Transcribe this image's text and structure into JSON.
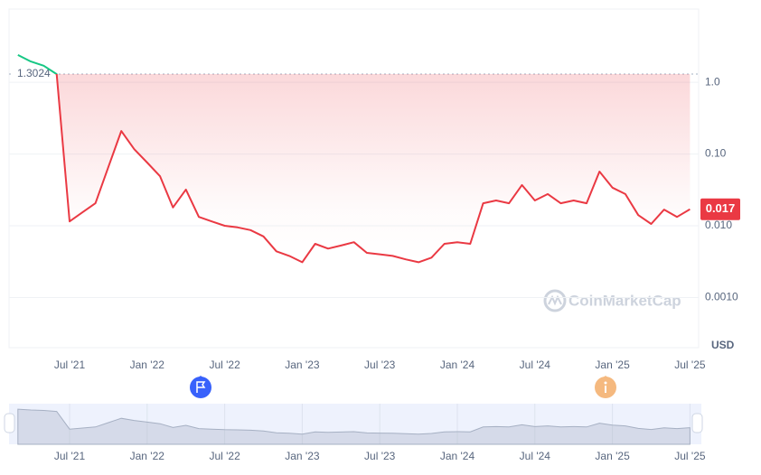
{
  "chart_data": {
    "type": "line",
    "x": [
      "2021-03",
      "2021-04",
      "2021-05",
      "2021-06",
      "2021-07",
      "2021-08",
      "2021-09",
      "2021-10",
      "2021-11",
      "2021-12",
      "2022-01",
      "2022-02",
      "2022-03",
      "2022-04",
      "2022-05",
      "2022-06",
      "2022-07",
      "2022-08",
      "2022-09",
      "2022-10",
      "2022-11",
      "2022-12",
      "2023-01",
      "2023-02",
      "2023-03",
      "2023-04",
      "2023-05",
      "2023-06",
      "2023-07",
      "2023-08",
      "2023-09",
      "2023-10",
      "2023-11",
      "2023-12",
      "2024-01",
      "2024-02",
      "2024-03",
      "2024-04",
      "2024-05",
      "2024-06",
      "2024-07",
      "2024-08",
      "2024-09",
      "2024-10",
      "2024-11",
      "2024-12",
      "2025-01",
      "2025-02",
      "2025-03",
      "2025-04",
      "2025-05",
      "2025-06",
      "2025-07"
    ],
    "series": [
      {
        "color": "#ea3943",
        "color_above": "#16c784",
        "values": [
          2.4,
          1.95,
          1.7,
          1.3,
          0.0115,
          0.0154,
          0.0206,
          0.066,
          0.209,
          0.117,
          0.076,
          0.049,
          0.018,
          0.032,
          0.0133,
          0.0115,
          0.01,
          0.0095,
          0.0087,
          0.0071,
          0.0044,
          0.0038,
          0.0031,
          0.0056,
          0.0048,
          0.0053,
          0.0059,
          0.0042,
          0.004,
          0.0038,
          0.0034,
          0.0031,
          0.0036,
          0.0056,
          0.0059,
          0.0056,
          0.0206,
          0.0225,
          0.0206,
          0.037,
          0.0225,
          0.0277,
          0.0206,
          0.0225,
          0.0206,
          0.057,
          0.034,
          0.0277,
          0.0141,
          0.0106,
          0.0168,
          0.0133,
          0.017
        ]
      }
    ],
    "reference_line": 1.3024,
    "log_scale": true,
    "grid": true,
    "ylim": [
      0.0002,
      10.5
    ],
    "yticks": [
      {
        "value": 1,
        "label": "1.0"
      },
      {
        "value": 0.1,
        "label": "0.10"
      },
      {
        "value": 0.01,
        "label": "0.010"
      },
      {
        "value": 0.001,
        "label": "0.0010"
      }
    ],
    "y_unit": "USD",
    "xticks": [
      {
        "value": "2021-07",
        "label": "Jul '21"
      },
      {
        "value": "2022-01",
        "label": "Jan '22"
      },
      {
        "value": "2022-07",
        "label": "Jul '22"
      },
      {
        "value": "2023-01",
        "label": "Jan '23"
      },
      {
        "value": "2023-07",
        "label": "Jul '23"
      },
      {
        "value": "2024-01",
        "label": "Jan '24"
      },
      {
        "value": "2024-07",
        "label": "Jul '24"
      },
      {
        "value": "2025-01",
        "label": "Jan '25"
      },
      {
        "value": "2025-07",
        "label": "Jul '25"
      }
    ],
    "watermark": "CoinMarketCap"
  }
}
